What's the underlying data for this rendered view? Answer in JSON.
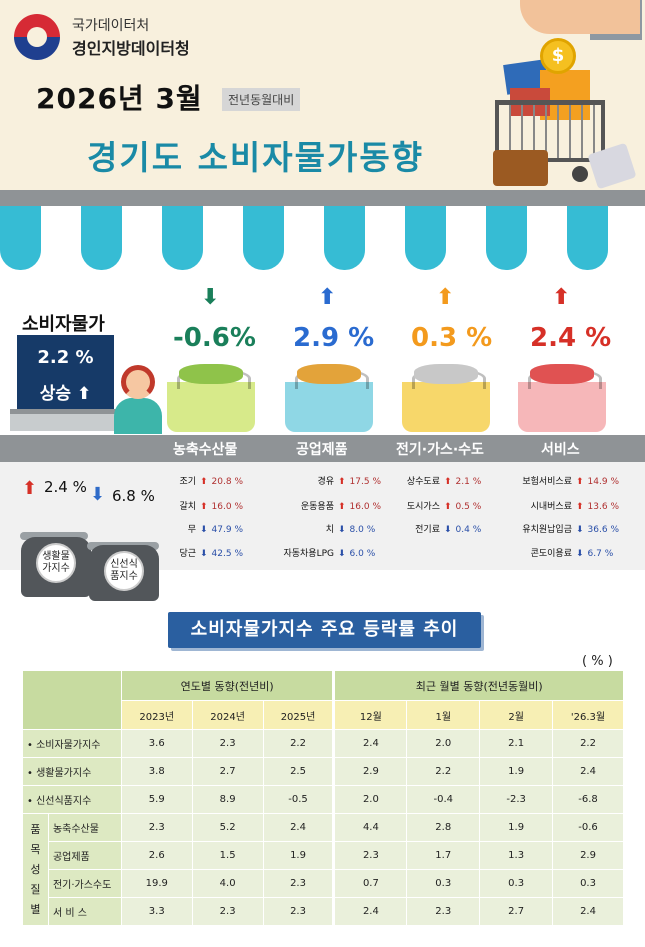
{
  "header": {
    "org_line1": "국가데이터처",
    "org_line2": "경인지방데이터청",
    "year_month": "2026년 3월",
    "yoy_badge": "전년동월대비",
    "title": "경기도 소비자물가동향",
    "coin_symbol": "$"
  },
  "cpi": {
    "label": "소비자물가",
    "value": "2.2  %",
    "direction": "상승 ⬆"
  },
  "categories": [
    {
      "arrow": "⬇",
      "arrow_color": "#1a7f5a",
      "change": "-0.6%",
      "change_color": "#1a7f5a",
      "name": "농축수산물"
    },
    {
      "arrow": "⬆",
      "arrow_color": "#2a6bd0",
      "change": "2.9 %",
      "change_color": "#2a6bd0",
      "name": "공업제품"
    },
    {
      "arrow": "⬆",
      "arrow_color": "#f39a1d",
      "change": "0.3 %",
      "change_color": "#f39a1d",
      "name": "전기·가스·수도"
    },
    {
      "arrow": "⬆",
      "arrow_color": "#d63027",
      "change": "2.4 %",
      "change_color": "#d63027",
      "name": "서비스"
    }
  ],
  "side": {
    "living_arrow": "⬆",
    "living_value": "2.4 %",
    "fresh_arrow": "⬇",
    "fresh_value": "6.8 %",
    "living_label": "생활물가지수",
    "fresh_label": "신선식품지수"
  },
  "items": {
    "agri": [
      {
        "name": "조기",
        "dir": "up",
        "value": "20.8 %"
      },
      {
        "name": "갈치",
        "dir": "up",
        "value": "16.0 %"
      },
      {
        "name": "무",
        "dir": "down",
        "value": "47.9 %"
      },
      {
        "name": "당근",
        "dir": "down",
        "value": "42.5 %"
      }
    ],
    "industrial": [
      {
        "name": "경유",
        "dir": "up",
        "value": "17.5 %"
      },
      {
        "name": "운동용품",
        "dir": "up",
        "value": "16.0 %"
      },
      {
        "name": "치",
        "dir": "down",
        "value": "8.0 %"
      },
      {
        "name": "자동차용LPG",
        "dir": "down",
        "value": "6.0 %"
      }
    ],
    "utilities": [
      {
        "name": "상수도료",
        "dir": "up",
        "value": "2.1 %"
      },
      {
        "name": "도시가스",
        "dir": "up",
        "value": "0.5 %"
      },
      {
        "name": "전기료",
        "dir": "down",
        "value": "0.4 %"
      }
    ],
    "services": [
      {
        "name": "보험서비스료",
        "dir": "up",
        "value": "14.9 %"
      },
      {
        "name": "시내버스료",
        "dir": "up",
        "value": "13.6 %"
      },
      {
        "name": "유치원납입금",
        "dir": "down",
        "value": "36.6 %"
      },
      {
        "name": "콘도이용료",
        "dir": "down",
        "value": "6.7 %"
      }
    ]
  },
  "table": {
    "title": "소비자물가지수 주요 등락률 추이",
    "unit": "( % )",
    "group_annual": "연도별 동향(전년비)",
    "group_monthly": "최근 월별 동향(전년동월비)",
    "columns": [
      "2023년",
      "2024년",
      "2025년",
      "12월",
      "1월",
      "2월",
      "'26.3월"
    ],
    "group_side_label": "품목성질별",
    "rows": [
      {
        "label": "• 소비자물가지수",
        "values": [
          "3.6",
          "2.3",
          "2.2",
          "2.4",
          "2.0",
          "2.1",
          "2.2"
        ]
      },
      {
        "label": "• 생활물가지수",
        "values": [
          "3.8",
          "2.7",
          "2.5",
          "2.9",
          "2.2",
          "1.9",
          "2.4"
        ]
      },
      {
        "label": "• 신선식품지수",
        "values": [
          "5.9",
          "8.9",
          "-0.5",
          "2.0",
          "-0.4",
          "-2.3",
          "-6.8"
        ]
      }
    ],
    "sub_rows": [
      {
        "label": "농축수산물",
        "values": [
          "2.3",
          "5.2",
          "2.4",
          "4.4",
          "2.8",
          "1.9",
          "-0.6"
        ]
      },
      {
        "label": "공업제품",
        "values": [
          "2.6",
          "1.5",
          "1.9",
          "2.3",
          "1.7",
          "1.3",
          "2.9"
        ]
      },
      {
        "label": "전기·가스수도",
        "values": [
          "19.9",
          "4.0",
          "2.3",
          "0.7",
          "0.3",
          "0.3",
          "0.3"
        ]
      },
      {
        "label": "서 비 스",
        "values": [
          "3.3",
          "2.3",
          "2.3",
          "2.4",
          "2.3",
          "2.7",
          "2.4"
        ]
      }
    ]
  }
}
